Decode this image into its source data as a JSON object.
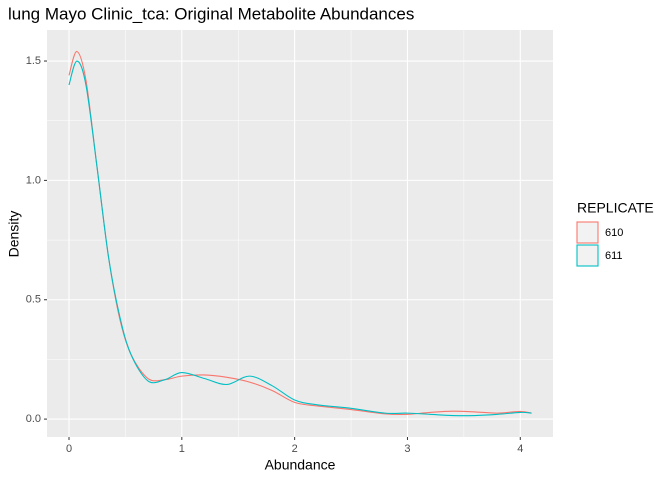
{
  "chart_data": {
    "type": "line",
    "title": "lung Mayo Clinic_tca: Original Metabolite Abundances",
    "x_label": "Abundance",
    "y_label": "Density",
    "legend_title": "REPLICATE",
    "legend_position": "right",
    "grid": true,
    "x": [
      0,
      0.07,
      0.15,
      0.25,
      0.35,
      0.45,
      0.55,
      0.7,
      0.85,
      1.0,
      1.2,
      1.4,
      1.6,
      1.8,
      2.0,
      2.2,
      2.5,
      2.8,
      3.0,
      3.2,
      3.4,
      3.6,
      3.8,
      4.0,
      4.1
    ],
    "series": [
      {
        "name": "610",
        "color": "#f8766d",
        "values": [
          1.44,
          1.54,
          1.42,
          1.05,
          0.68,
          0.42,
          0.27,
          0.17,
          0.165,
          0.18,
          0.185,
          0.175,
          0.155,
          0.12,
          0.07,
          0.055,
          0.04,
          0.022,
          0.02,
          0.028,
          0.033,
          0.03,
          0.025,
          0.032,
          0.025
        ]
      },
      {
        "name": "611",
        "color": "#00bfc4",
        "values": [
          1.4,
          1.5,
          1.4,
          1.05,
          0.68,
          0.43,
          0.27,
          0.16,
          0.165,
          0.195,
          0.17,
          0.145,
          0.18,
          0.14,
          0.08,
          0.06,
          0.045,
          0.025,
          0.025,
          0.02,
          0.015,
          0.015,
          0.02,
          0.028,
          0.025
        ]
      }
    ],
    "xlim": [
      -0.195,
      4.29
    ],
    "xticks": [
      0,
      1,
      2,
      3,
      4
    ],
    "ylim": [
      -0.075,
      1.63
    ],
    "yticks": [
      {
        "value": 0,
        "label": "0.0"
      },
      0.5,
      {
        "value": 1,
        "label": "1.0"
      },
      1.5
    ]
  }
}
